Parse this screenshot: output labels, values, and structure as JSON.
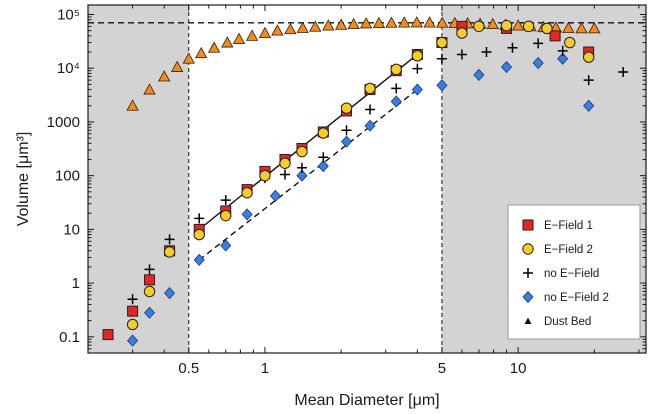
{
  "chart_data": {
    "type": "scatter",
    "xlabel": "Mean Diameter [μm]",
    "ylabel": "Volume [μm³]",
    "x_scale": "log",
    "y_scale": "log",
    "xlim": [
      0.2,
      32
    ],
    "ylim": [
      0.05,
      150000
    ],
    "x_ticks": [
      {
        "value": 0.5,
        "label": "0.5"
      },
      {
        "value": 1,
        "label": "1"
      },
      {
        "value": 5,
        "label": "5"
      },
      {
        "value": 10,
        "label": "10"
      }
    ],
    "y_ticks": [
      {
        "value": 0.1,
        "label": "0.1"
      },
      {
        "value": 1,
        "label": "1"
      },
      {
        "value": 10,
        "label": "10"
      },
      {
        "value": 100,
        "label": "100"
      },
      {
        "value": 1000,
        "label": "1000"
      },
      {
        "value": 10000,
        "label": "10⁴"
      },
      {
        "value": 100000,
        "label": "10⁵"
      }
    ],
    "shaded_regions": [
      [
        0.2,
        0.5
      ],
      [
        5,
        32
      ]
    ],
    "legend_position": "bottom-right",
    "colors": {
      "e_field_1": "#e32626",
      "e_field_2": "#f5cc2a",
      "no_e_field": "#000000",
      "no_e_field_2": "#3a7ee0",
      "dust_bed": "#f08a24",
      "shade": "#d3d3d3"
    },
    "series": [
      {
        "name": "E−Field 1",
        "marker": "square",
        "x": [
          0.24,
          0.3,
          0.35,
          0.42,
          0.55,
          0.7,
          0.85,
          1.0,
          1.2,
          1.4,
          1.7,
          2.1,
          2.6,
          3.3,
          4.0,
          5.0,
          6.0,
          9.0,
          14.0,
          19.0
        ],
        "y": [
          0.11,
          0.3,
          1.15,
          4.0,
          10,
          22,
          55,
          120,
          200,
          320,
          650,
          1600,
          4000,
          9000,
          18000,
          30000,
          60000,
          55000,
          40000,
          20000
        ]
      },
      {
        "name": "E−Field 2",
        "marker": "circle",
        "x": [
          0.3,
          0.35,
          0.42,
          0.55,
          0.7,
          0.85,
          1.0,
          1.2,
          1.4,
          1.7,
          2.1,
          2.6,
          3.3,
          4.0,
          5.0,
          6.0,
          7.0,
          9.0,
          11.0,
          13.0,
          16.0,
          19.0
        ],
        "y": [
          0.17,
          0.7,
          3.8,
          8,
          18,
          48,
          100,
          170,
          280,
          620,
          1800,
          4200,
          9500,
          17000,
          30000,
          45000,
          60000,
          62000,
          60000,
          55000,
          30000,
          16000
        ]
      },
      {
        "name": "no E−Field",
        "marker": "plus",
        "x": [
          0.3,
          0.35,
          0.42,
          0.55,
          0.7,
          0.85,
          1.0,
          1.2,
          1.4,
          1.7,
          2.1,
          2.6,
          3.3,
          4.0,
          5.0,
          6.0,
          7.5,
          9.5,
          12.0,
          15.0,
          19.0,
          26.0
        ],
        "y": [
          0.5,
          1.8,
          6.5,
          16,
          35,
          55,
          90,
          105,
          140,
          220,
          700,
          1700,
          4200,
          9800,
          15000,
          18000,
          20000,
          24000,
          29000,
          21000,
          6000,
          8500
        ]
      },
      {
        "name": "no E−Field 2",
        "marker": "diamond",
        "x": [
          0.3,
          0.35,
          0.42,
          0.55,
          0.7,
          0.85,
          1.1,
          1.4,
          1.7,
          2.1,
          2.6,
          3.3,
          4.0,
          5.0,
          7.0,
          9.0,
          12.0,
          15.0,
          19.0
        ],
        "y": [
          0.085,
          0.28,
          0.65,
          2.7,
          5,
          19,
          42,
          100,
          150,
          430,
          850,
          2400,
          4000,
          4800,
          7500,
          10500,
          12500,
          15000,
          2000
        ]
      },
      {
        "name": "Dust Bed",
        "marker": "triangle",
        "x": [
          0.3,
          0.35,
          0.4,
          0.45,
          0.5,
          0.56,
          0.63,
          0.71,
          0.79,
          0.89,
          1.0,
          1.12,
          1.26,
          1.41,
          1.58,
          1.78,
          2.0,
          2.24,
          2.51,
          2.82,
          3.16,
          3.55,
          3.98,
          4.47,
          5.01,
          5.62,
          6.31,
          7.08,
          7.94,
          8.91,
          10.0,
          11.2,
          12.6,
          14.1,
          15.8,
          17.8,
          20.0
        ],
        "y": [
          2000,
          4000,
          7000,
          10500,
          15000,
          19000,
          24000,
          30000,
          35000,
          40000,
          45000,
          50000,
          53000,
          56000,
          59000,
          62000,
          64000,
          66000,
          68000,
          69000,
          70000,
          70500,
          71000,
          70500,
          70000,
          69000,
          68000,
          67000,
          66000,
          64000,
          62000,
          60000,
          58000,
          57000,
          56000,
          55000,
          55000
        ]
      }
    ],
    "reference_lines": [
      {
        "style": "dashed",
        "orientation": "horizontal",
        "y": 70000
      },
      {
        "style": "solid",
        "x": [
          0.55,
          4.0
        ],
        "y": [
          10,
          18000
        ]
      },
      {
        "style": "dashed",
        "x": [
          0.55,
          4.0
        ],
        "y": [
          2.7,
          4000
        ]
      }
    ]
  }
}
